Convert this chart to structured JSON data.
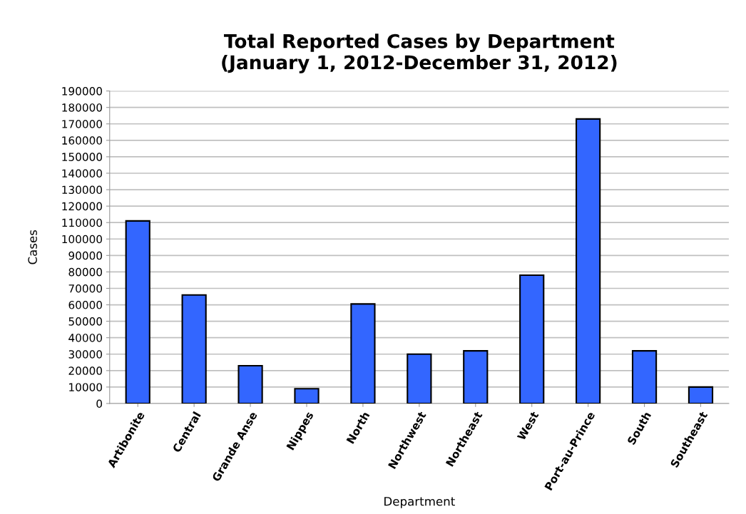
{
  "chart_data": {
    "type": "bar",
    "title": "Total Reported Cases by Department\n(January 1, 2012-December 31, 2012)",
    "xlabel": "Department",
    "ylabel": "Cases",
    "categories": [
      "Artibonite",
      "Central",
      "Grande Anse",
      "Nippes",
      "North",
      "Northwest",
      "Northeast",
      "West",
      "Port-au-Prince",
      "South",
      "Southeast"
    ],
    "values": [
      111000,
      66000,
      23000,
      9000,
      60500,
      30000,
      32000,
      78000,
      173000,
      32000,
      10000
    ],
    "color": "#3366ff",
    "ylim": [
      0,
      190000
    ],
    "yticks": [
      0,
      10000,
      20000,
      30000,
      40000,
      50000,
      60000,
      70000,
      80000,
      90000,
      100000,
      110000,
      120000,
      130000,
      140000,
      150000,
      160000,
      170000,
      180000,
      190000
    ],
    "grid": "y"
  }
}
